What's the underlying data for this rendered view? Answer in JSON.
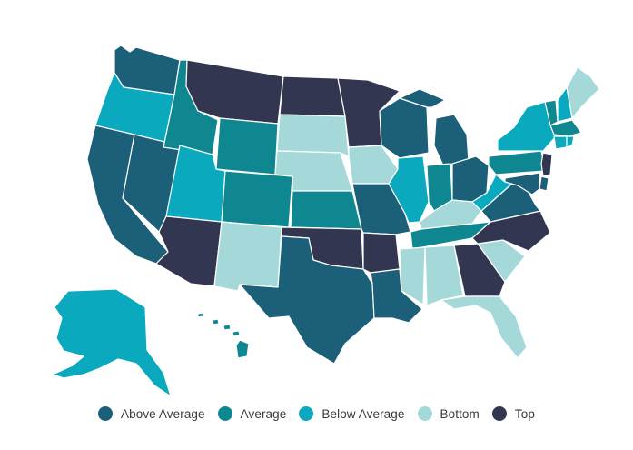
{
  "colors": {
    "top": "#333651",
    "above": "#1b5f79",
    "average": "#0f8791",
    "below": "#0aa9bd",
    "bottom": "#a5d9d9"
  },
  "legend": [
    {
      "label": "Above Average",
      "key": "above"
    },
    {
      "label": "Average",
      "key": "average"
    },
    {
      "label": "Below Average",
      "key": "below"
    },
    {
      "label": "Bottom",
      "key": "bottom"
    },
    {
      "label": "Top",
      "key": "top"
    }
  ],
  "states": {
    "WA": "above",
    "OR": "below",
    "CA": "above",
    "NV": "above",
    "ID": "average",
    "MT": "top",
    "WY": "average",
    "UT": "below",
    "AZ": "top",
    "CO": "average",
    "NM": "bottom",
    "ND": "top",
    "SD": "bottom",
    "NE": "bottom",
    "KS": "average",
    "OK": "top",
    "TX": "above",
    "MN": "top",
    "IA": "bottom",
    "MO": "above",
    "AR": "top",
    "LA": "above",
    "WI": "above",
    "IL": "below",
    "MI": "above",
    "IN": "average",
    "OH": "above",
    "KY": "bottom",
    "TN": "average",
    "MS": "bottom",
    "AL": "bottom",
    "GA": "top",
    "FL": "bottom",
    "SC": "bottom",
    "NC": "top",
    "VA": "above",
    "WV": "below",
    "PA": "average",
    "NY": "below",
    "VT": "average",
    "NH": "below",
    "ME": "bottom",
    "MA": "average",
    "CT": "below",
    "RI": "below",
    "NJ": "top",
    "DE": "above",
    "MD": "above",
    "AK": "below",
    "HI": "average"
  }
}
